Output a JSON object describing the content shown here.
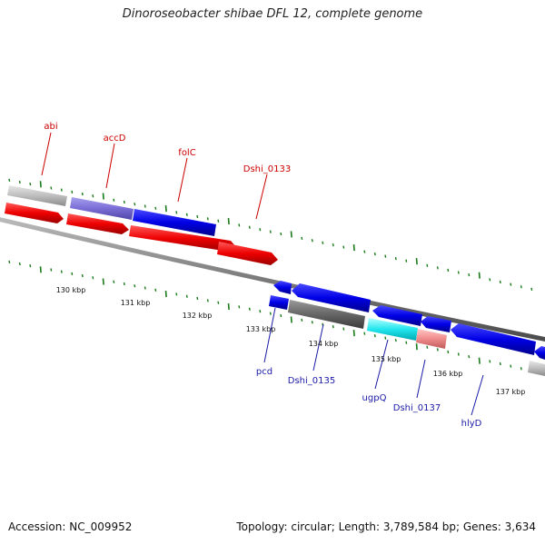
{
  "title": "Dinoroseobacter shibae DFL 12, complete genome",
  "accession": "Accession: NC_009952",
  "stats": "Topology: circular; Length: 3,789,584 bp; Genes: 3,634",
  "colors": {
    "red": "#e00000",
    "blue": "#0000dd",
    "backbone": "#777777",
    "tick": "#1a7a1a"
  },
  "kbp_labels": [
    "130 kbp",
    "131 kbp",
    "132 kbp",
    "133 kbp",
    "134 kbp",
    "135 kbp",
    "136 kbp",
    "137 kbp"
  ],
  "genes_top": [
    {
      "name": "abi"
    },
    {
      "name": "accD"
    },
    {
      "name": "folC"
    },
    {
      "name": "Dshi_0133"
    }
  ],
  "genes_bottom": [
    {
      "name": "pcd"
    },
    {
      "name": "Dshi_0135"
    },
    {
      "name": "ugpQ"
    },
    {
      "name": "Dshi_0137"
    },
    {
      "name": "hlyD"
    }
  ]
}
